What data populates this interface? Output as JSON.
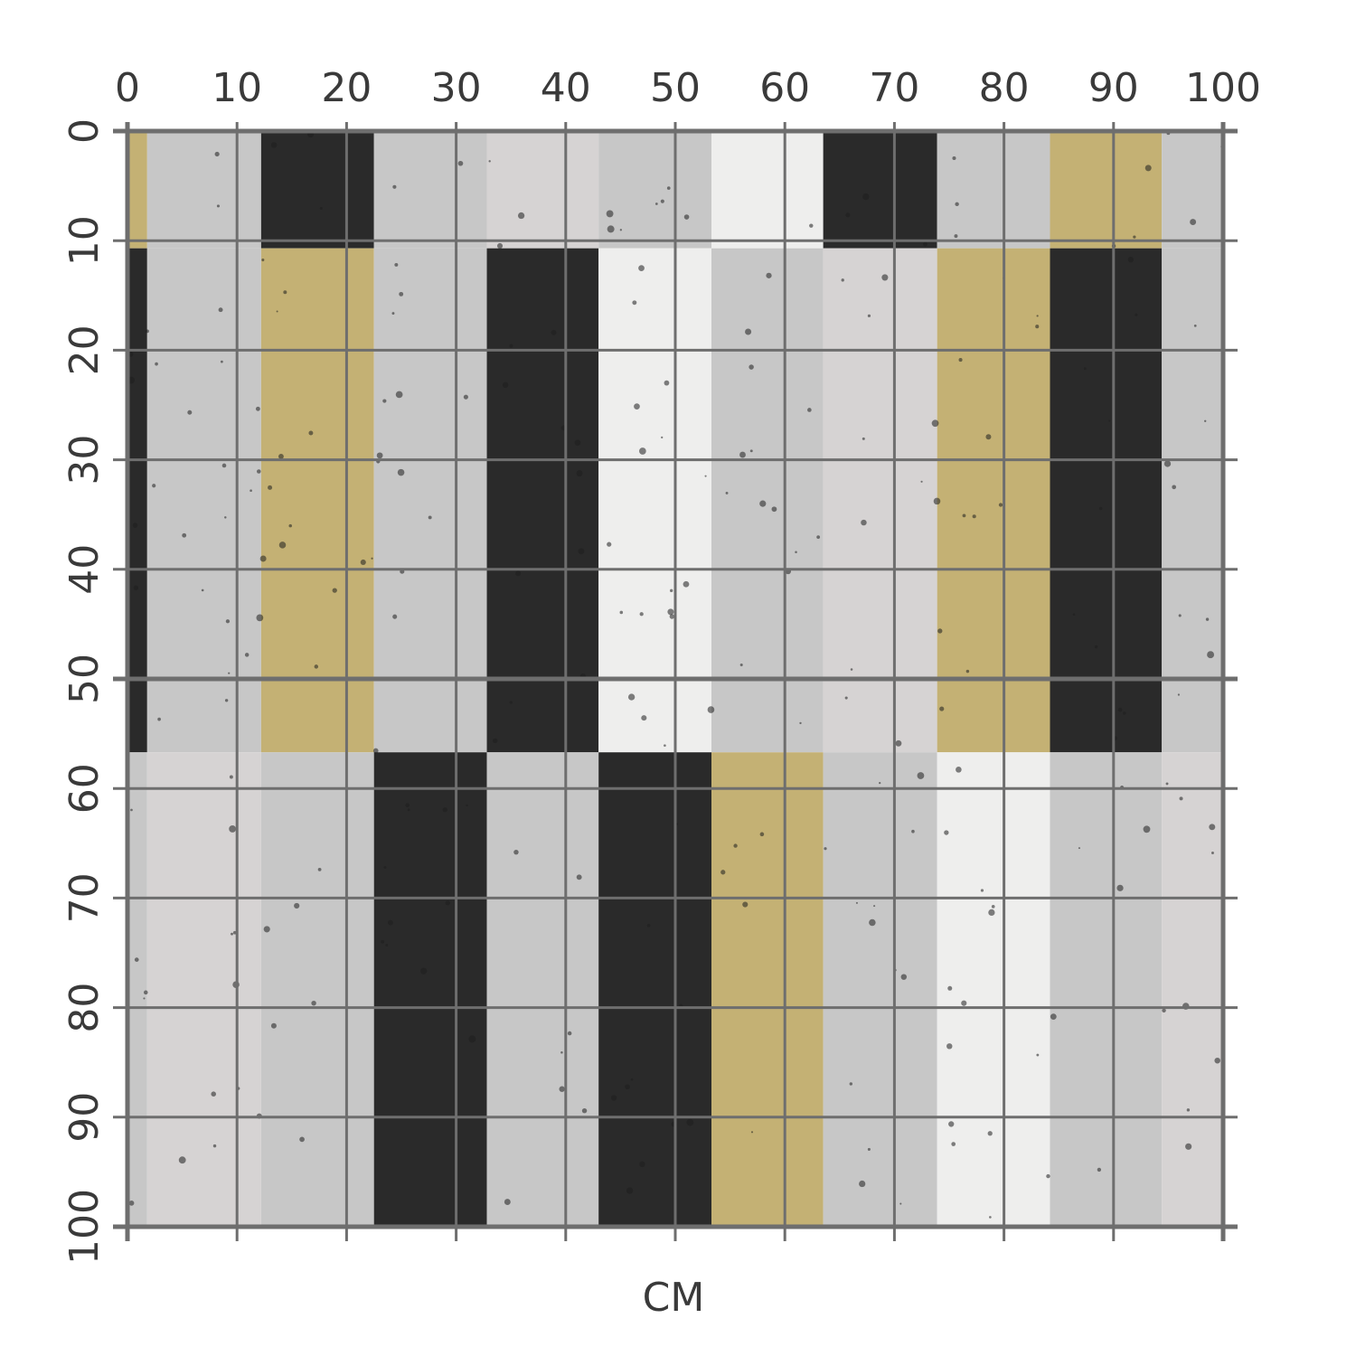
{
  "unit_label": "CM",
  "ruler": {
    "x_ticks": [
      "0",
      "10",
      "20",
      "30",
      "40",
      "50",
      "60",
      "70",
      "80",
      "90",
      "100"
    ],
    "y_ticks": [
      "0",
      "10",
      "20",
      "30",
      "40",
      "50",
      "60",
      "70",
      "80",
      "90",
      "100"
    ],
    "range": [
      0,
      100
    ]
  },
  "colors": {
    "gold": "#c4b174",
    "black": "#2a2a2a",
    "light_gray": "#d6d3d3",
    "concrete": "#c7c7c7",
    "white": "#eeeeed",
    "grid": "#6e6e6e",
    "text": "#3a3a3a"
  },
  "pattern": {
    "column_edges_cm": [
      0,
      1.8,
      12.2,
      22.5,
      32.8,
      43.0,
      53.3,
      63.5,
      73.9,
      84.2,
      94.4,
      100
    ],
    "row_edges_cm": [
      0,
      10.7,
      56.7,
      100
    ],
    "tiles": [
      [
        "gold",
        "concrete",
        "black",
        "concrete",
        "light_gray",
        "concrete",
        "white",
        "black",
        "concrete",
        "gold",
        "concrete"
      ],
      [
        "black",
        "concrete",
        "gold",
        "concrete",
        "black",
        "white",
        "concrete",
        "light_gray",
        "gold",
        "black",
        "concrete"
      ],
      [
        "concrete",
        "light_gray",
        "concrete",
        "black",
        "concrete",
        "black",
        "gold",
        "concrete",
        "white",
        "concrete",
        "light_gray"
      ]
    ]
  }
}
